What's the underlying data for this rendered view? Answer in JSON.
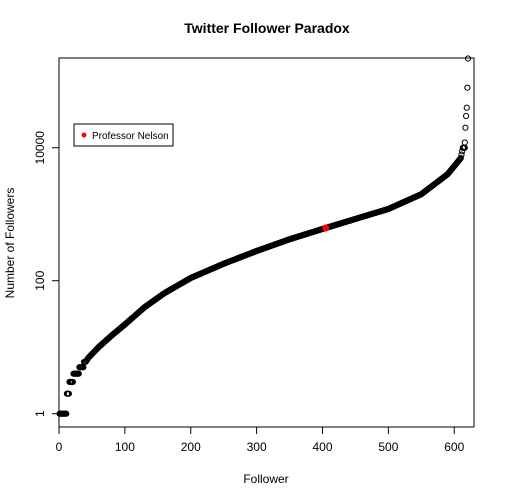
{
  "chart_data": {
    "type": "scatter",
    "title": "Twitter Follower Paradox",
    "xlabel": "Follower",
    "ylabel": "Number of Followers",
    "xlim": [
      0,
      630
    ],
    "ylim_log10": [
      -0.2,
      5.35
    ],
    "y_scale": "log10",
    "x_ticks": [
      0,
      100,
      200,
      300,
      400,
      500,
      600
    ],
    "y_ticks": [
      {
        "value": 1,
        "label": "1"
      },
      {
        "value": 100,
        "label": "100"
      },
      {
        "value": 10000,
        "label": "10000"
      }
    ],
    "n_points": 622,
    "series_profile": [
      {
        "x": 5,
        "y": 1
      },
      {
        "x": 10,
        "y": 1
      },
      {
        "x": 13,
        "y": 2
      },
      {
        "x": 17,
        "y": 3
      },
      {
        "x": 25,
        "y": 4
      },
      {
        "x": 35,
        "y": 5
      },
      {
        "x": 45,
        "y": 7
      },
      {
        "x": 60,
        "y": 10
      },
      {
        "x": 80,
        "y": 15
      },
      {
        "x": 100,
        "y": 22
      },
      {
        "x": 130,
        "y": 40
      },
      {
        "x": 160,
        "y": 65
      },
      {
        "x": 200,
        "y": 110
      },
      {
        "x": 250,
        "y": 180
      },
      {
        "x": 300,
        "y": 280
      },
      {
        "x": 350,
        "y": 420
      },
      {
        "x": 400,
        "y": 600
      },
      {
        "x": 450,
        "y": 850
      },
      {
        "x": 500,
        "y": 1200
      },
      {
        "x": 550,
        "y": 2000
      },
      {
        "x": 590,
        "y": 4000
      },
      {
        "x": 610,
        "y": 7000
      },
      {
        "x": 613,
        "y": 10000
      }
    ],
    "top_outliers": [
      {
        "x": 616,
        "y": 12000
      },
      {
        "x": 617,
        "y": 20000
      },
      {
        "x": 618,
        "y": 30000
      },
      {
        "x": 619,
        "y": 40000
      },
      {
        "x": 620,
        "y": 80000
      },
      {
        "x": 621,
        "y": 220000
      }
    ],
    "highlight": {
      "name": "Professor Nelson",
      "x": 405,
      "y": 620,
      "color": "#ff0000"
    },
    "marker_color": "#000000",
    "legend": {
      "position": "upper-left",
      "entries": [
        {
          "label": "Professor Nelson",
          "color": "#ff0000"
        }
      ]
    }
  }
}
